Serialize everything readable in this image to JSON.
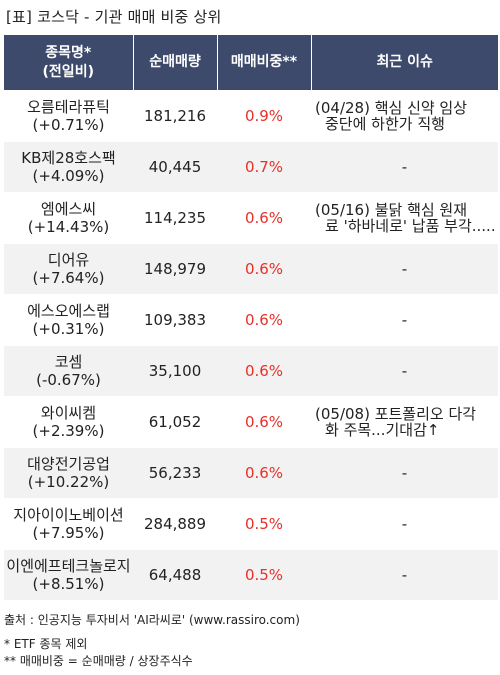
{
  "title": "[표] 코스닥 - 기관 매매 비중 상위",
  "headers": {
    "name_line1": "종목명*",
    "name_line2": "(전일비)",
    "volume": "순매매량",
    "ratio": "매매비중**",
    "issue": "최근 이슈"
  },
  "rows": [
    {
      "name": "오름테라퓨틱",
      "change": "(+0.71%)",
      "volume": "181,216",
      "ratio": "0.9%",
      "issue_line1": "(04/28) 핵심 신약 임상",
      "issue_line2": "중단에 하한가 직행"
    },
    {
      "name": "KB제28호스팩",
      "change": "(+4.09%)",
      "volume": "40,445",
      "ratio": "0.7%",
      "issue_line1": "-",
      "issue_line2": ""
    },
    {
      "name": "엠에스씨",
      "change": "(+14.43%)",
      "volume": "114,235",
      "ratio": "0.6%",
      "issue_line1": "(05/16) 불닭 핵심 원재",
      "issue_line2": "료 '하바네로' 납품 부각....."
    },
    {
      "name": "디어유",
      "change": "(+7.64%)",
      "volume": "148,979",
      "ratio": "0.6%",
      "issue_line1": "-",
      "issue_line2": ""
    },
    {
      "name": "에스오에스랩",
      "change": "(+0.31%)",
      "volume": "109,383",
      "ratio": "0.6%",
      "issue_line1": "-",
      "issue_line2": ""
    },
    {
      "name": "코셈",
      "change": "(-0.67%)",
      "volume": "35,100",
      "ratio": "0.6%",
      "issue_line1": "-",
      "issue_line2": ""
    },
    {
      "name": "와이씨켐",
      "change": "(+2.39%)",
      "volume": "61,052",
      "ratio": "0.6%",
      "issue_line1": "(05/08) 포트폴리오 다각",
      "issue_line2": "화 주목...기대감↑"
    },
    {
      "name": "대양전기공업",
      "change": "(+10.22%)",
      "volume": "56,233",
      "ratio": "0.6%",
      "issue_line1": "-",
      "issue_line2": ""
    },
    {
      "name": "지아이이노베이션",
      "change": "(+7.95%)",
      "volume": "284,889",
      "ratio": "0.5%",
      "issue_line1": "-",
      "issue_line2": ""
    },
    {
      "name": "이엔에프테크놀로지",
      "change": "(+8.51%)",
      "volume": "64,488",
      "ratio": "0.5%",
      "issue_line1": "-",
      "issue_line2": ""
    }
  ],
  "footer": {
    "source": "출처 : 인공지능 투자비서 'AI라씨로' (www.rassiro.com)",
    "note1": "* ETF 종목 제외",
    "note2": "** 매매비중 = 순매매량 / 상장주식수"
  },
  "colors": {
    "header_bg": "#3d4a6b",
    "ratio_text": "#e8302a",
    "even_row_bg": "#f2f2f2"
  }
}
